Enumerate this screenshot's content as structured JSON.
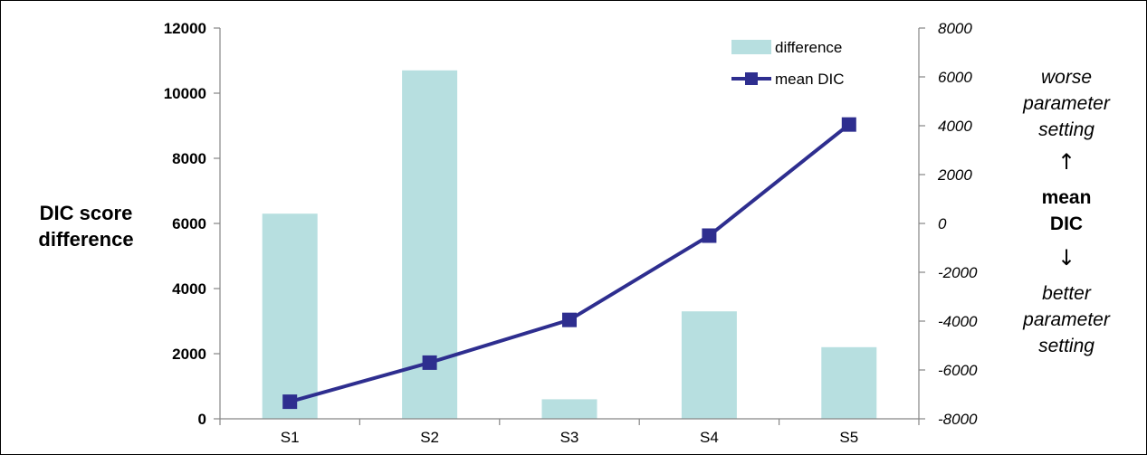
{
  "chart_data": {
    "type": "bar+line",
    "categories": [
      "S1",
      "S2",
      "S3",
      "S4",
      "S5"
    ],
    "series": [
      {
        "name": "difference",
        "type": "bar",
        "axis": "left",
        "color": "#b7dfe0",
        "values": [
          6300,
          10700,
          600,
          3300,
          2200
        ]
      },
      {
        "name": "mean DIC",
        "type": "line",
        "axis": "right",
        "color": "#2e2e8f",
        "values": [
          -7300,
          -5700,
          -3950,
          -500,
          4050
        ]
      }
    ],
    "ylabel": "DIC score difference",
    "ylabel_lines": [
      "DIC score",
      "difference"
    ],
    "ylim_left": [
      0,
      12000
    ],
    "yticks_left": [
      "0",
      "2000",
      "4000",
      "6000",
      "8000",
      "10000",
      "12000"
    ],
    "ylim_right": [
      -8000,
      8000
    ],
    "yticks_right": [
      "-8000",
      "-6000",
      "-4000",
      "-2000",
      "0",
      "2000",
      "4000",
      "6000",
      "8000"
    ],
    "grid": false,
    "legend_position": "top-right-inside",
    "annotation": {
      "top_lines": [
        "worse",
        "parameter",
        "setting"
      ],
      "up_arrow": "↑",
      "middle_lines": [
        "mean",
        "DIC"
      ],
      "down_arrow": "↓",
      "bottom_lines": [
        "better",
        "parameter",
        "setting"
      ]
    }
  }
}
